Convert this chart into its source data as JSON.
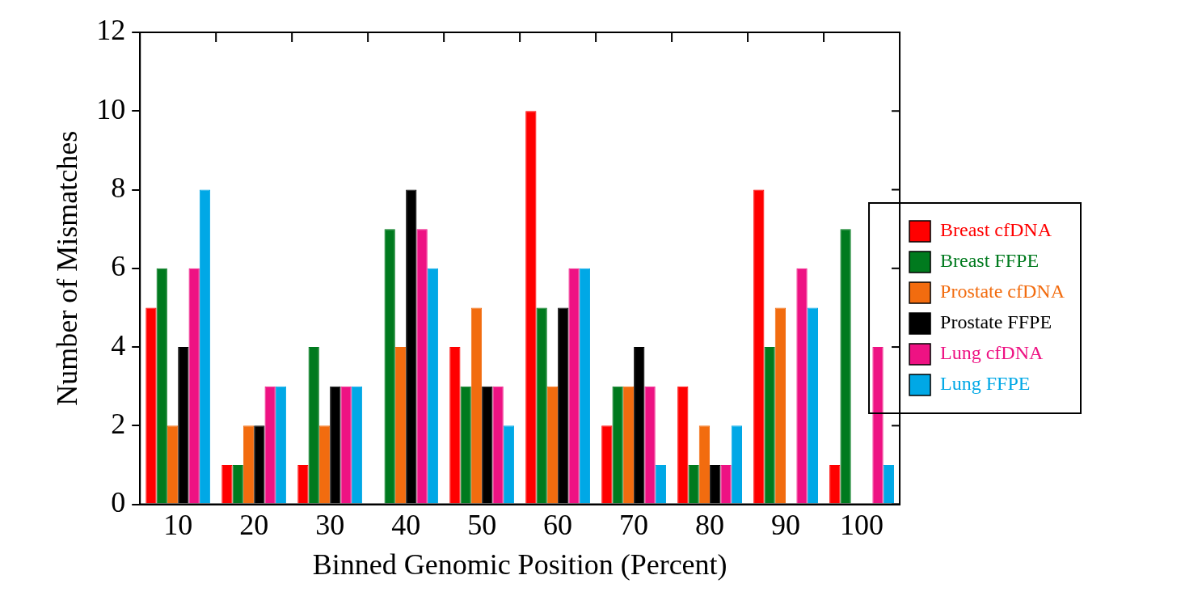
{
  "chart_data": {
    "type": "bar",
    "xlabel": "Binned Genomic Position (Percent)",
    "ylabel": "Number of Mismatches",
    "categories": [
      "10",
      "20",
      "30",
      "40",
      "50",
      "60",
      "70",
      "80",
      "90",
      "100"
    ],
    "series": [
      {
        "name": "Breast cfDNA",
        "color": "#ff0000",
        "values": [
          5,
          1,
          1,
          0,
          4,
          10,
          2,
          3,
          8,
          1
        ]
      },
      {
        "name": "Breast FFPE",
        "color": "#007a1e",
        "values": [
          6,
          1,
          4,
          7,
          3,
          5,
          3,
          1,
          4,
          7
        ]
      },
      {
        "name": "Prostate cfDNA",
        "color": "#f26c0f",
        "values": [
          2,
          2,
          2,
          4,
          5,
          3,
          3,
          2,
          5,
          0
        ]
      },
      {
        "name": "Prostate FFPE",
        "color": "#000000",
        "values": [
          4,
          2,
          3,
          8,
          3,
          5,
          4,
          1,
          0,
          0
        ]
      },
      {
        "name": "Lung cfDNA",
        "color": "#ee1283",
        "values": [
          6,
          3,
          3,
          7,
          3,
          6,
          3,
          1,
          6,
          4
        ]
      },
      {
        "name": "Lung FFPE",
        "color": "#00a8e6",
        "values": [
          8,
          3,
          3,
          6,
          2,
          6,
          1,
          2,
          5,
          1
        ]
      }
    ],
    "ylim": [
      0,
      12
    ],
    "yticks": [
      0,
      2,
      4,
      6,
      8,
      10,
      12
    ],
    "grid": false,
    "legend": "right"
  }
}
